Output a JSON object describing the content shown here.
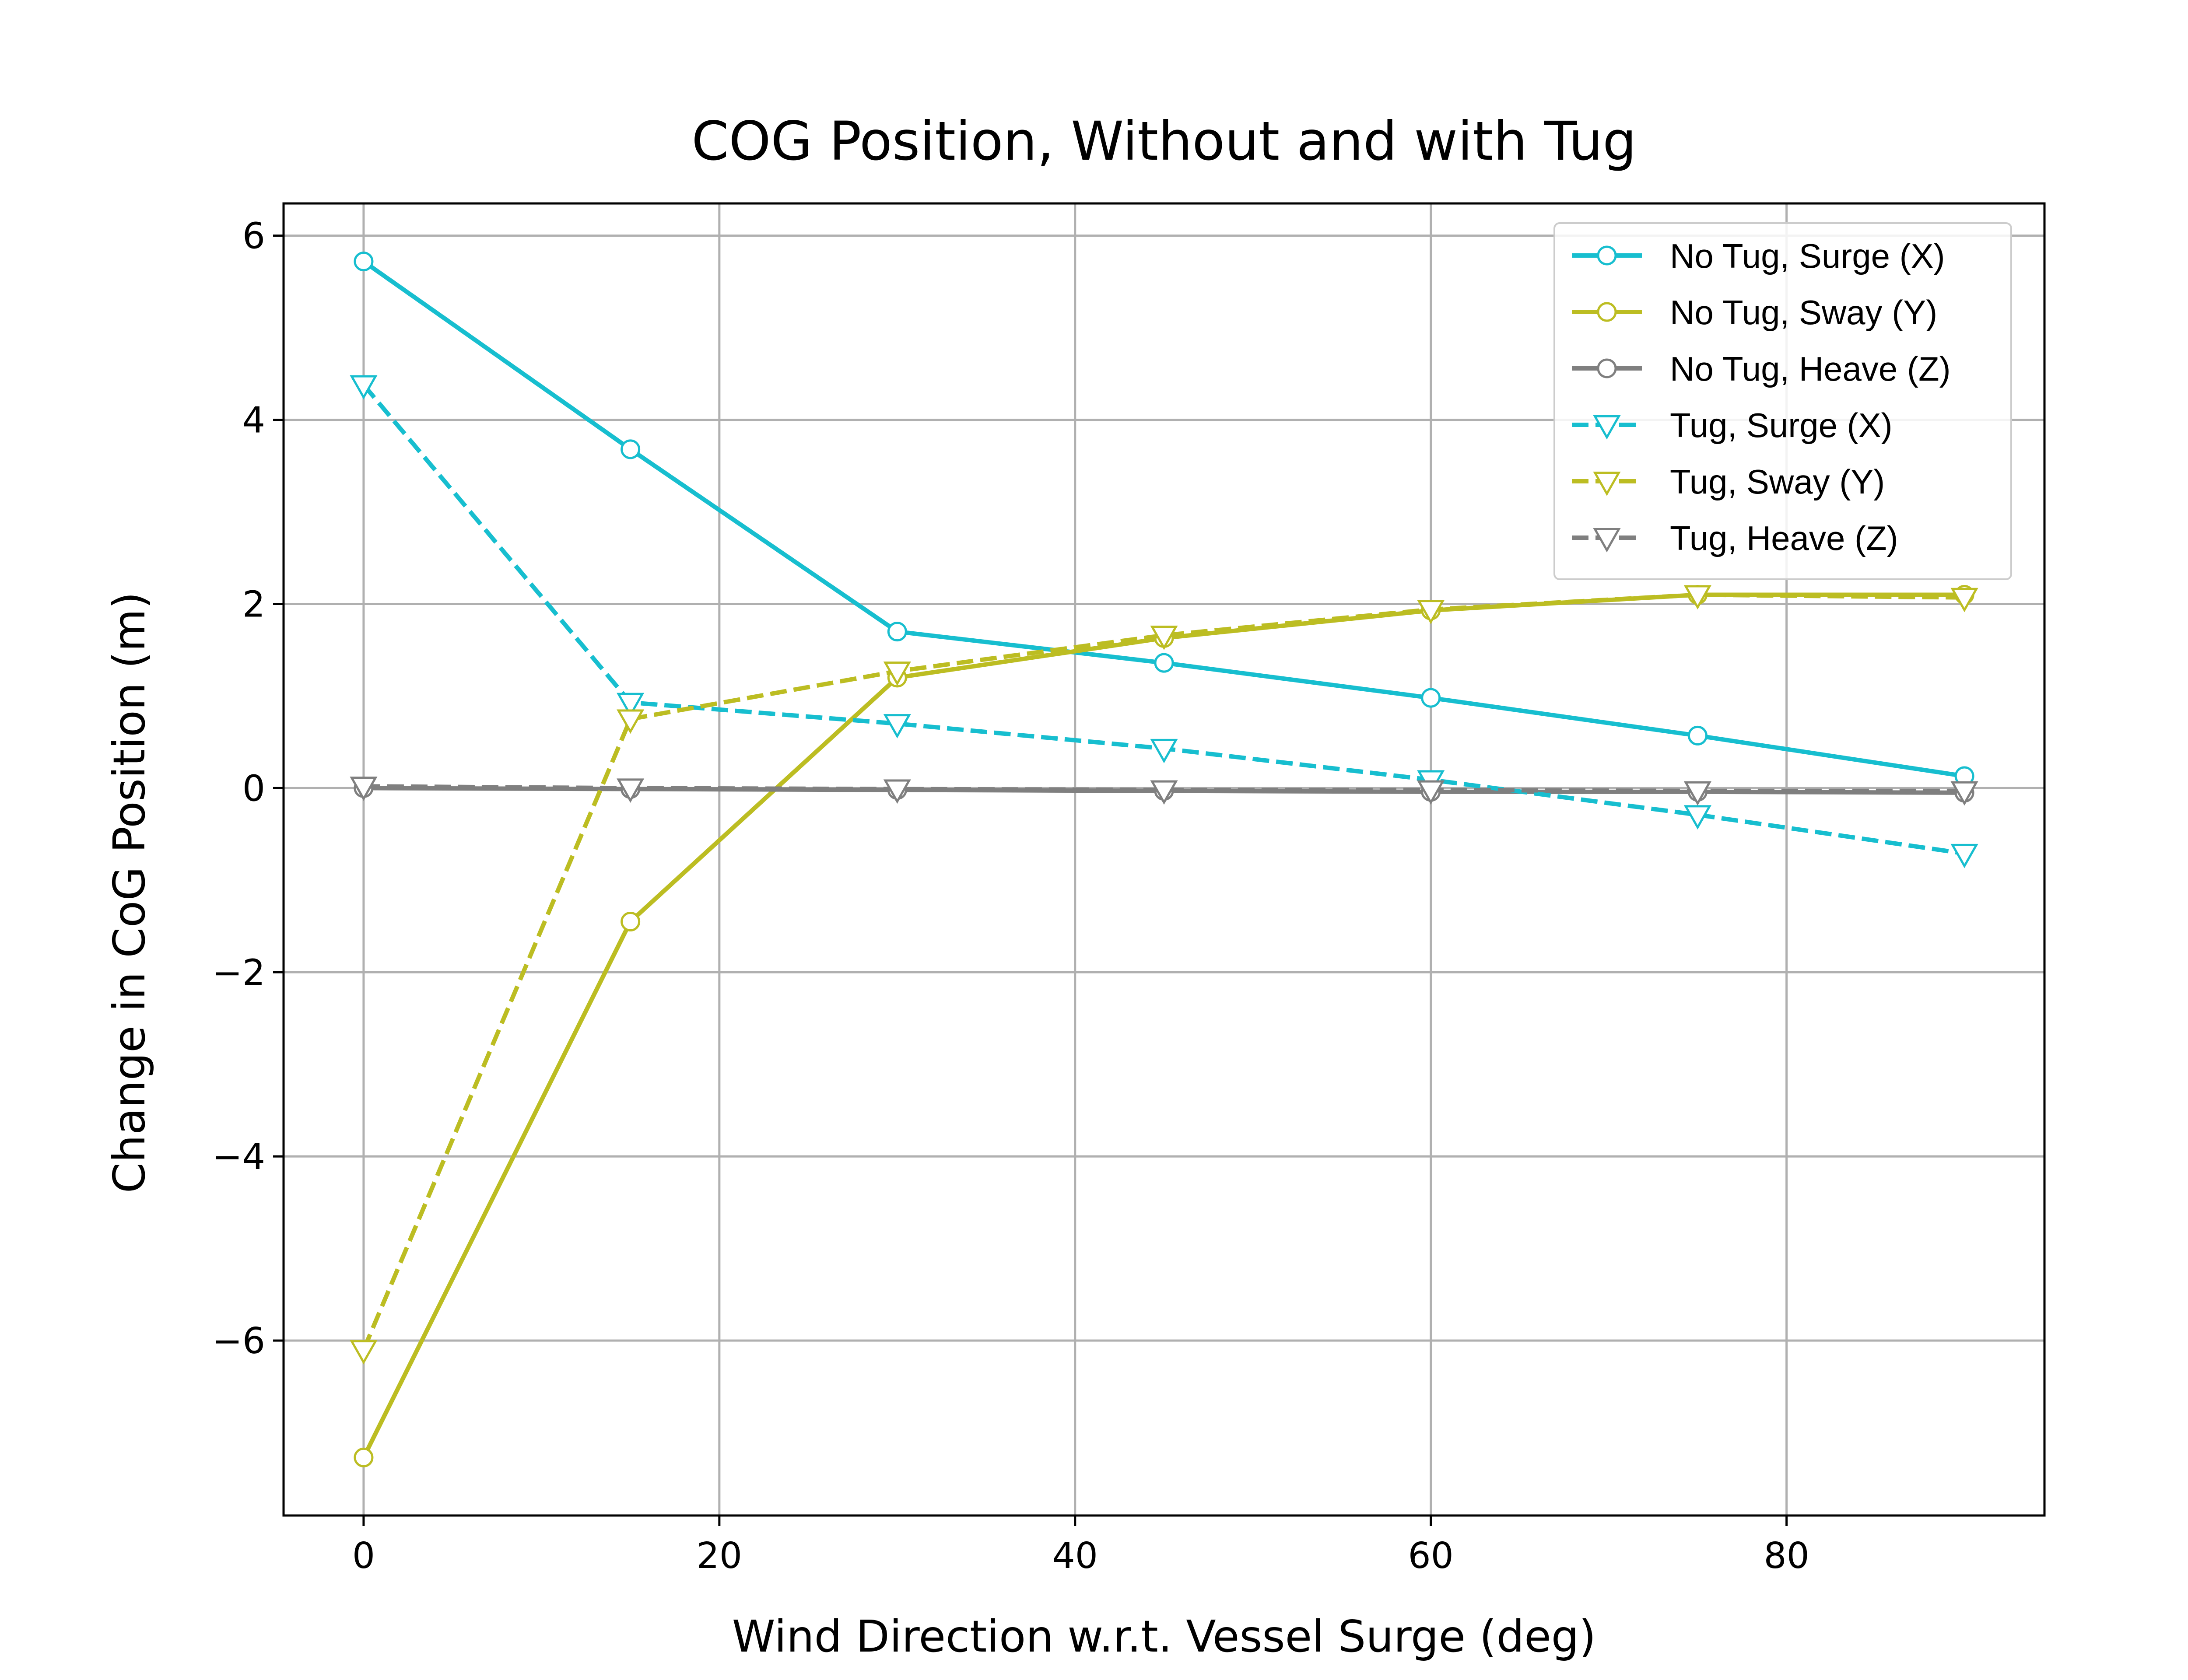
{
  "chart_data": {
    "type": "line",
    "title": "COG Position, Without and with Tug",
    "xlabel": "Wind Direction w.r.t. Vessel Surge (deg)",
    "ylabel": "Change in CoG Position (m)",
    "xlim": [
      -4.5,
      94.5
    ],
    "ylim": [
      -7.9,
      6.35
    ],
    "xticks": [
      0,
      20,
      40,
      60,
      80
    ],
    "yticks": [
      -6,
      -4,
      -2,
      0,
      2,
      4,
      6
    ],
    "xtick_labels": [
      "0",
      "20",
      "40",
      "60",
      "80"
    ],
    "ytick_labels": [
      "−6",
      "−4",
      "−2",
      "0",
      "2",
      "4",
      "6"
    ],
    "grid": true,
    "legend_position": "top-right",
    "x": [
      0,
      15,
      30,
      45,
      60,
      75,
      90
    ],
    "series": [
      {
        "name": "No Tug, Surge (X)",
        "color": "#17becf",
        "dash": "solid",
        "marker": "circle",
        "values": [
          5.72,
          3.68,
          1.7,
          1.36,
          0.98,
          0.57,
          0.13
        ]
      },
      {
        "name": "No Tug, Sway (Y)",
        "color": "#bcbd22",
        "dash": "solid",
        "marker": "circle",
        "values": [
          -7.27,
          -1.45,
          1.2,
          1.63,
          1.93,
          2.1,
          2.1
        ]
      },
      {
        "name": "No Tug, Heave (Z)",
        "color": "#7f7f7f",
        "dash": "solid",
        "marker": "circle",
        "values": [
          0.0,
          -0.01,
          -0.02,
          -0.03,
          -0.04,
          -0.04,
          -0.05
        ]
      },
      {
        "name": "Tug, Surge (X)",
        "color": "#17becf",
        "dash": "dashed",
        "marker": "triangle-down",
        "values": [
          4.38,
          0.93,
          0.7,
          0.43,
          0.09,
          -0.29,
          -0.71
        ]
      },
      {
        "name": "Tug, Sway (Y)",
        "color": "#bcbd22",
        "dash": "dashed",
        "marker": "triangle-down",
        "values": [
          -6.1,
          0.75,
          1.27,
          1.66,
          1.94,
          2.1,
          2.07
        ]
      },
      {
        "name": "Tug, Heave (Z)",
        "color": "#7f7f7f",
        "dash": "dashed",
        "marker": "triangle-down",
        "values": [
          0.02,
          0.0,
          -0.01,
          -0.02,
          -0.02,
          -0.03,
          -0.03
        ]
      }
    ]
  }
}
